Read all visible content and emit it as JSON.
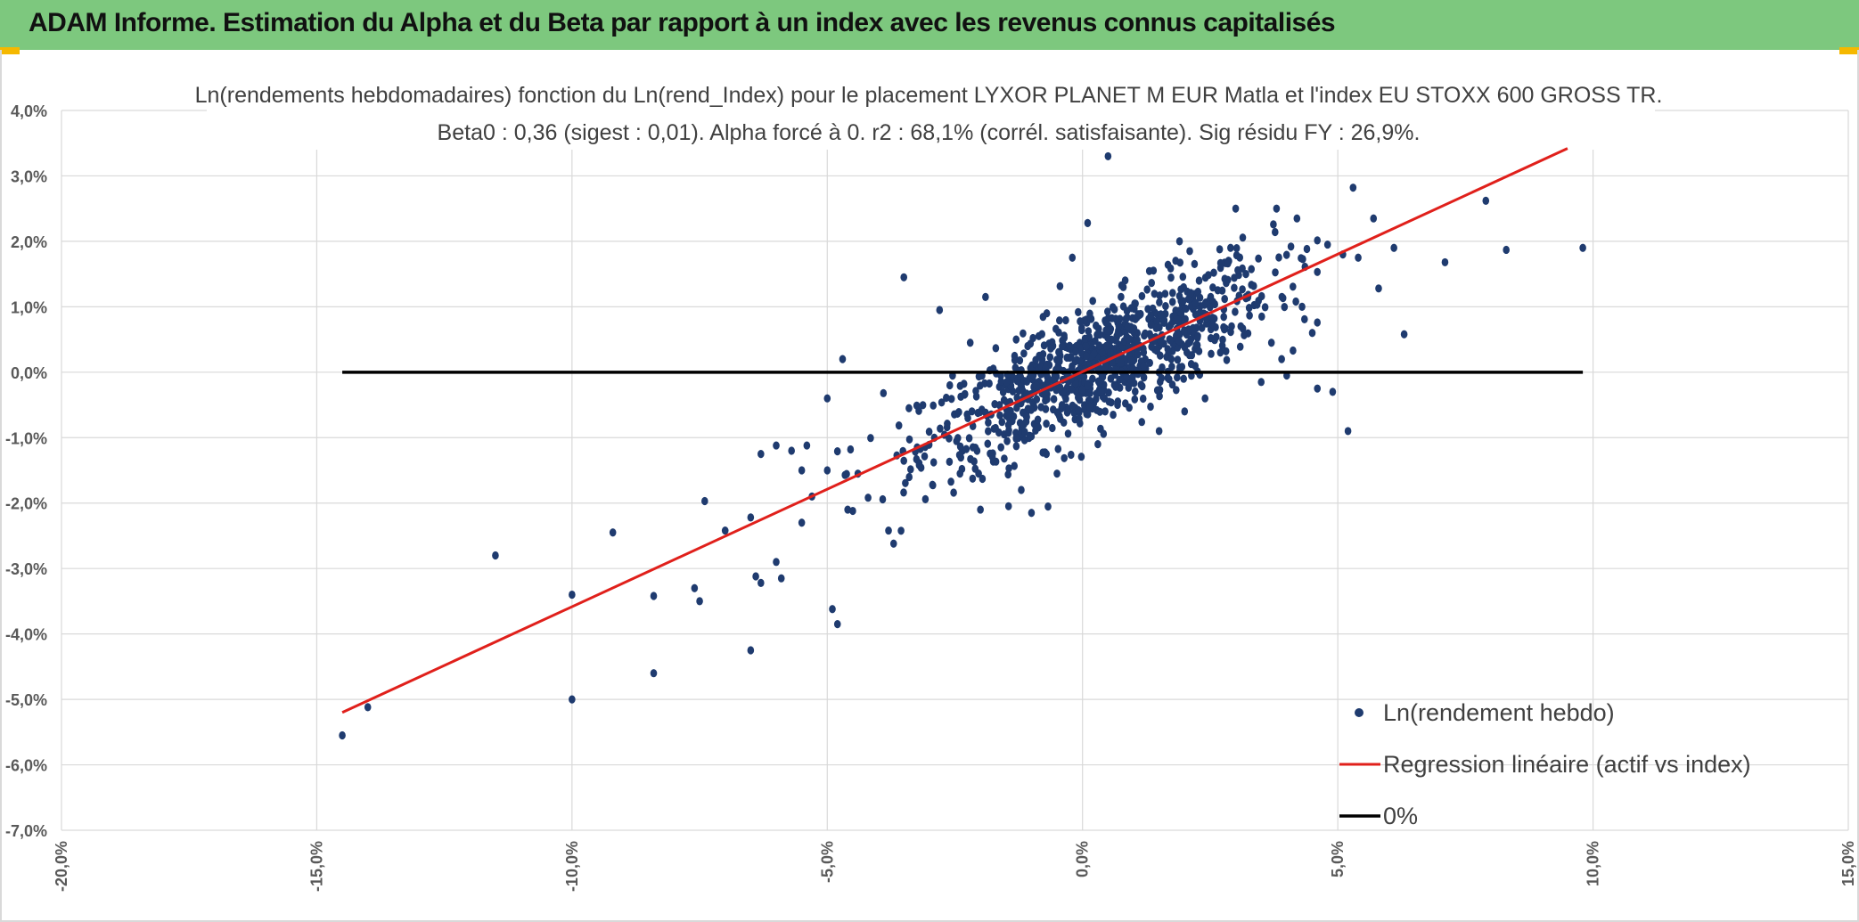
{
  "header": {
    "title": "ADAM Informe. Estimation du Alpha et du Beta par rapport à un index avec les revenus connus capitalisés"
  },
  "colors": {
    "header_bg": "#7dc87e",
    "accent_corner": "#f5b800",
    "scatter": "#1f3b6f",
    "regression": "#e0201b",
    "zero_line": "#000000",
    "grid": "#d9d9d9"
  },
  "chart_data": {
    "type": "scatter",
    "title_line1": "Ln(rendements hebdomadaires) fonction du Ln(rend_Index) pour le placement LYXOR PLANET M EUR Matla  et l'index EU STOXX 600 GROSS TR.",
    "title_line2": "Beta0 : 0,36 (sigest : 0,01). Alpha forcé à 0. r2 : 68,1% (corrél. satisfaisante). Sig résidu FY : 26,9%.",
    "xlim": [
      -20,
      15
    ],
    "ylim": [
      -7,
      4
    ],
    "x_ticks": [
      -20,
      -15,
      -10,
      -5,
      0,
      5,
      10,
      15
    ],
    "x_tick_labels": [
      "-20,0%",
      "-15,0%",
      "-10,0%",
      "-5,0%",
      "0,0%",
      "5,0%",
      "10,0%",
      "15,0%"
    ],
    "y_ticks": [
      4,
      3,
      2,
      1,
      0,
      -1,
      -2,
      -3,
      -4,
      -5,
      -6,
      -7
    ],
    "y_tick_labels": [
      "4,0%",
      "3,0%",
      "2,0%",
      "1,0%",
      "0,0%",
      "-1,0%",
      "-2,0%",
      "-3,0%",
      "-4,0%",
      "-5,0%",
      "-6,0%",
      "-7,0%"
    ],
    "grid": true,
    "legend_position": "bottom-right",
    "series": [
      {
        "name": "Ln(rendement hebdo)",
        "kind": "scatter",
        "points": [
          [
            -14.5,
            -5.55
          ],
          [
            -14.0,
            -5.12
          ],
          [
            -11.5,
            -2.8
          ],
          [
            -10.0,
            -3.4
          ],
          [
            -10.0,
            -5.0
          ],
          [
            -9.2,
            -2.45
          ],
          [
            -8.4,
            -3.42
          ],
          [
            -8.4,
            -4.6
          ],
          [
            -7.6,
            -3.3
          ],
          [
            -7.5,
            -3.5
          ],
          [
            -7.4,
            -1.97
          ],
          [
            -7.0,
            -2.42
          ],
          [
            -6.5,
            -2.22
          ],
          [
            -6.5,
            -4.25
          ],
          [
            -6.4,
            -3.12
          ],
          [
            -6.3,
            -3.22
          ],
          [
            -6.3,
            -1.25
          ],
          [
            -6.0,
            -1.12
          ],
          [
            -6.0,
            -2.9
          ],
          [
            -5.9,
            -3.15
          ],
          [
            -5.7,
            -1.2
          ],
          [
            -5.5,
            -1.5
          ],
          [
            -5.5,
            -2.3
          ],
          [
            -5.4,
            -1.12
          ],
          [
            -5.3,
            -1.9
          ],
          [
            -5.0,
            -1.5
          ],
          [
            -5.0,
            -0.4
          ],
          [
            -4.9,
            -3.62
          ],
          [
            -4.8,
            -3.85
          ],
          [
            -4.7,
            0.2
          ],
          [
            -4.6,
            -2.1
          ],
          [
            -4.5,
            -2.12
          ],
          [
            -4.4,
            -1.55
          ],
          [
            -3.9,
            -0.32
          ],
          [
            -3.8,
            -2.42
          ],
          [
            -3.7,
            -2.62
          ],
          [
            -3.5,
            1.45
          ],
          [
            -3.4,
            -0.55
          ],
          [
            -3.2,
            -1.42
          ],
          [
            -2.8,
            0.95
          ],
          [
            -2.6,
            -0.2
          ],
          [
            -2.4,
            -1.55
          ],
          [
            -2.2,
            0.45
          ],
          [
            -2.0,
            -2.1
          ],
          [
            -1.9,
            1.15
          ],
          [
            -1.6,
            -0.05
          ],
          [
            -1.3,
            0.5
          ],
          [
            -1.2,
            -1.8
          ],
          [
            -1.0,
            -2.15
          ],
          [
            -0.7,
            0.9
          ],
          [
            -0.5,
            -1.55
          ],
          [
            -0.2,
            1.75
          ],
          [
            0.1,
            2.28
          ],
          [
            0.3,
            -1.1
          ],
          [
            0.5,
            3.3
          ],
          [
            0.6,
            -0.65
          ],
          [
            0.8,
            1.3
          ],
          [
            1.2,
            0.1
          ],
          [
            1.5,
            -0.9
          ],
          [
            1.9,
            2.0
          ],
          [
            2.0,
            -0.6
          ],
          [
            2.1,
            1.85
          ],
          [
            2.4,
            -0.4
          ],
          [
            2.7,
            0.3
          ],
          [
            2.9,
            1.9
          ],
          [
            3.0,
            2.5
          ],
          [
            3.1,
            0.7
          ],
          [
            3.2,
            1.5
          ],
          [
            3.5,
            -0.15
          ],
          [
            3.7,
            0.45
          ],
          [
            3.8,
            2.5
          ],
          [
            3.9,
            0.2
          ],
          [
            4.0,
            -0.05
          ],
          [
            4.2,
            2.35
          ],
          [
            4.3,
            1.0
          ],
          [
            4.5,
            0.6
          ],
          [
            4.6,
            -0.25
          ],
          [
            4.8,
            1.95
          ],
          [
            4.9,
            -0.3
          ],
          [
            5.1,
            1.8
          ],
          [
            5.2,
            -0.9
          ],
          [
            5.3,
            2.82
          ],
          [
            5.4,
            1.75
          ],
          [
            5.7,
            2.35
          ],
          [
            5.8,
            1.28
          ],
          [
            6.1,
            1.9
          ],
          [
            6.3,
            0.58
          ],
          [
            7.1,
            1.68
          ],
          [
            7.9,
            2.62
          ],
          [
            8.3,
            1.87
          ],
          [
            9.8,
            1.9
          ]
        ]
      },
      {
        "name": "Regression linéaire (actif vs index)",
        "kind": "line",
        "x": [
          -14.5,
          9.5
        ],
        "y": [
          -5.2,
          3.42
        ]
      },
      {
        "name": "0%",
        "kind": "line",
        "x": [
          -14.5,
          9.8
        ],
        "y": [
          0,
          0
        ]
      }
    ],
    "cloud": {
      "n": 950,
      "x_center": 0.3,
      "x_sd": 1.7,
      "slope": 0.36,
      "residual_sd": 0.45
    }
  }
}
